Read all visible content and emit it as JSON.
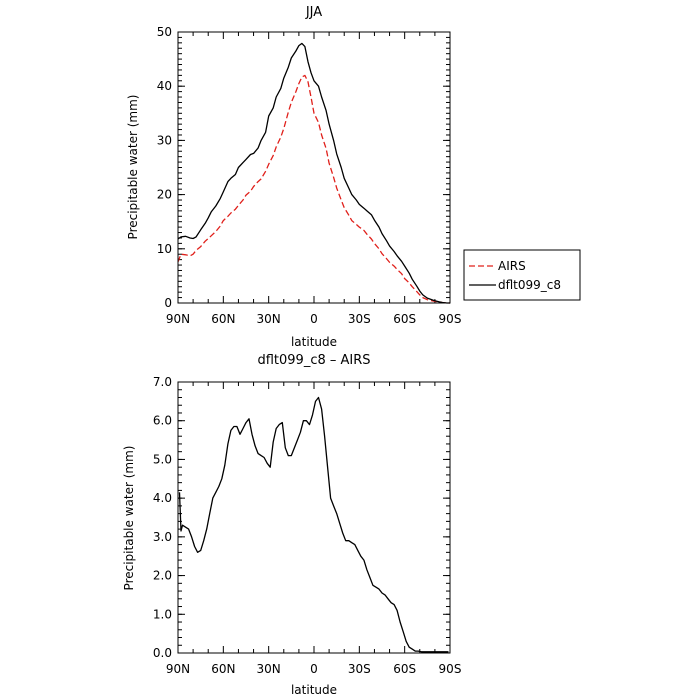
{
  "chart_data": [
    {
      "type": "line",
      "title": "JJA",
      "xlabel": "latitude",
      "ylabel": "Precipitable water (mm)",
      "xlim": [
        90,
        -90
      ],
      "ylim": [
        0,
        50
      ],
      "x_ticks": [
        90,
        60,
        30,
        0,
        -30,
        -60,
        -90
      ],
      "x_tick_labels": [
        "90N",
        "60N",
        "30N",
        "0",
        "30S",
        "60S",
        "90S"
      ],
      "y_ticks": [
        0,
        10,
        20,
        30,
        40,
        50
      ],
      "y_tick_labels": [
        "0",
        "10",
        "20",
        "30",
        "40",
        "50"
      ],
      "legend_position": "right",
      "series": [
        {
          "name": "AIRS",
          "color": "#e0201b",
          "dash": "dashed",
          "x": [
            90,
            88,
            85,
            82,
            80,
            78,
            75,
            72,
            70,
            68,
            65,
            62,
            60,
            57,
            55,
            52,
            50,
            47,
            45,
            42,
            40,
            37,
            35,
            32,
            30,
            27,
            25,
            22,
            20,
            17,
            15,
            12,
            10,
            8,
            6,
            4,
            2,
            0,
            -3,
            -5,
            -8,
            -10,
            -13,
            -15,
            -18,
            -20,
            -23,
            -25,
            -28,
            -30,
            -33,
            -35,
            -38,
            -40,
            -43,
            -45,
            -48,
            -50,
            -53,
            -55,
            -58,
            -60,
            -63,
            -65,
            -68,
            -70,
            -72,
            -75,
            -78,
            -80,
            -83,
            -85,
            -88,
            -90
          ],
          "y": [
            7.6,
            9.0,
            8.9,
            8.7,
            9.0,
            9.7,
            10.4,
            11.4,
            11.9,
            12.4,
            13.2,
            14.2,
            15.2,
            16.0,
            16.6,
            17.3,
            18.0,
            19.0,
            19.9,
            20.6,
            21.5,
            22.4,
            22.9,
            24.3,
            25.6,
            27.2,
            28.8,
            30.6,
            32.2,
            35.2,
            37.0,
            39.0,
            40.5,
            41.7,
            42.0,
            40.8,
            38.0,
            35.0,
            33.3,
            31.0,
            28.5,
            25.8,
            23.2,
            21.2,
            19.0,
            17.6,
            16.2,
            15.2,
            14.5,
            14.0,
            13.4,
            12.7,
            11.8,
            11.0,
            10.0,
            9.1,
            8.2,
            7.5,
            6.8,
            6.2,
            5.4,
            4.5,
            3.7,
            3.0,
            2.1,
            1.5,
            1.0,
            0.6,
            0.4,
            0.3,
            0.2,
            0.1,
            0.0,
            0.0
          ]
        },
        {
          "name": "dflt099_c8",
          "color": "#000000",
          "dash": "solid",
          "x": [
            90,
            88,
            85,
            82,
            80,
            78,
            75,
            72,
            70,
            68,
            65,
            62,
            60,
            57,
            55,
            52,
            50,
            47,
            45,
            42,
            40,
            37,
            35,
            32,
            30,
            27,
            25,
            22,
            20,
            17,
            15,
            12,
            10,
            8,
            6,
            4,
            2,
            0,
            -3,
            -5,
            -8,
            -10,
            -13,
            -15,
            -18,
            -20,
            -23,
            -25,
            -28,
            -30,
            -33,
            -35,
            -38,
            -40,
            -43,
            -45,
            -48,
            -50,
            -53,
            -55,
            -58,
            -60,
            -63,
            -65,
            -68,
            -70,
            -72,
            -75,
            -78,
            -80,
            -83,
            -85,
            -88,
            -90
          ],
          "y": [
            11.8,
            12.2,
            12.3,
            12.0,
            11.9,
            12.2,
            13.5,
            14.7,
            15.7,
            16.8,
            17.9,
            19.3,
            20.5,
            22.4,
            23.0,
            23.7,
            25.0,
            25.9,
            26.5,
            27.4,
            27.6,
            28.6,
            30.0,
            31.5,
            34.5,
            36.0,
            38.0,
            39.6,
            41.5,
            43.5,
            45.2,
            46.5,
            47.5,
            47.9,
            47.3,
            44.5,
            42.5,
            41.0,
            40.0,
            38.0,
            35.5,
            33.0,
            30.0,
            27.5,
            25.0,
            23.0,
            21.2,
            20.0,
            19.0,
            18.2,
            17.5,
            17.0,
            16.3,
            15.3,
            14.0,
            12.8,
            11.5,
            10.5,
            9.5,
            8.7,
            7.7,
            6.8,
            5.5,
            4.4,
            3.1,
            2.2,
            1.5,
            0.9,
            0.6,
            0.4,
            0.2,
            0.1,
            0.0,
            0.0
          ]
        }
      ]
    },
    {
      "type": "line",
      "title": "dflt099_c8 – AIRS",
      "xlabel": "latitude",
      "ylabel": "Precipitable water (mm)",
      "xlim": [
        90,
        -90
      ],
      "ylim": [
        0,
        7
      ],
      "x_ticks": [
        90,
        60,
        30,
        0,
        -30,
        -60,
        -90
      ],
      "x_tick_labels": [
        "90N",
        "60N",
        "30N",
        "0",
        "30S",
        "60S",
        "90S"
      ],
      "y_ticks": [
        0,
        1,
        2,
        3,
        4,
        5,
        6,
        7
      ],
      "y_tick_labels": [
        "0.0",
        "1.0",
        "2.0",
        "3.0",
        "4.0",
        "5.0",
        "6.0",
        "7.0"
      ],
      "series": [
        {
          "color": "#000000",
          "dash": "solid",
          "x": [
            89,
            88,
            87,
            85,
            83,
            81,
            79,
            77,
            75,
            73,
            71,
            69,
            67,
            65,
            63,
            61,
            59,
            57,
            55,
            53,
            51,
            49,
            47,
            45,
            43,
            41,
            39,
            37,
            35,
            33,
            31,
            29,
            27,
            25,
            23,
            21,
            19,
            17,
            15,
            13,
            11,
            9,
            7,
            5,
            3,
            1,
            -1,
            -3,
            -5,
            -7,
            -9,
            -11,
            -13,
            -15,
            -17,
            -19,
            -21,
            -23,
            -25,
            -27,
            -29,
            -31,
            -33,
            -35,
            -37,
            -39,
            -41,
            -43,
            -45,
            -47,
            -49,
            -51,
            -53,
            -55,
            -57,
            -59,
            -61,
            -63,
            -65,
            -67,
            -69,
            -71,
            -73,
            -75,
            -77,
            -79,
            -81,
            -83,
            -85,
            -87,
            -89
          ],
          "y": [
            4.15,
            3.15,
            3.3,
            3.25,
            3.2,
            3.0,
            2.75,
            2.6,
            2.65,
            2.9,
            3.2,
            3.6,
            4.0,
            4.15,
            4.3,
            4.5,
            4.85,
            5.4,
            5.75,
            5.85,
            5.85,
            5.65,
            5.8,
            5.95,
            6.05,
            5.65,
            5.35,
            5.15,
            5.1,
            5.05,
            4.9,
            4.8,
            5.45,
            5.8,
            5.9,
            5.95,
            5.3,
            5.1,
            5.1,
            5.3,
            5.5,
            5.7,
            6.0,
            6.0,
            5.9,
            6.15,
            6.5,
            6.6,
            6.3,
            5.6,
            4.8,
            4.0,
            3.8,
            3.6,
            3.35,
            3.1,
            2.9,
            2.9,
            2.85,
            2.8,
            2.65,
            2.5,
            2.4,
            2.15,
            1.95,
            1.75,
            1.7,
            1.65,
            1.55,
            1.5,
            1.4,
            1.3,
            1.25,
            1.1,
            0.8,
            0.55,
            0.3,
            0.15,
            0.1,
            0.05,
            0.05,
            0.03,
            0.03,
            0.03,
            0.03,
            0.03,
            0.03,
            0.03,
            0.03,
            0.03,
            0.03
          ]
        }
      ]
    }
  ]
}
